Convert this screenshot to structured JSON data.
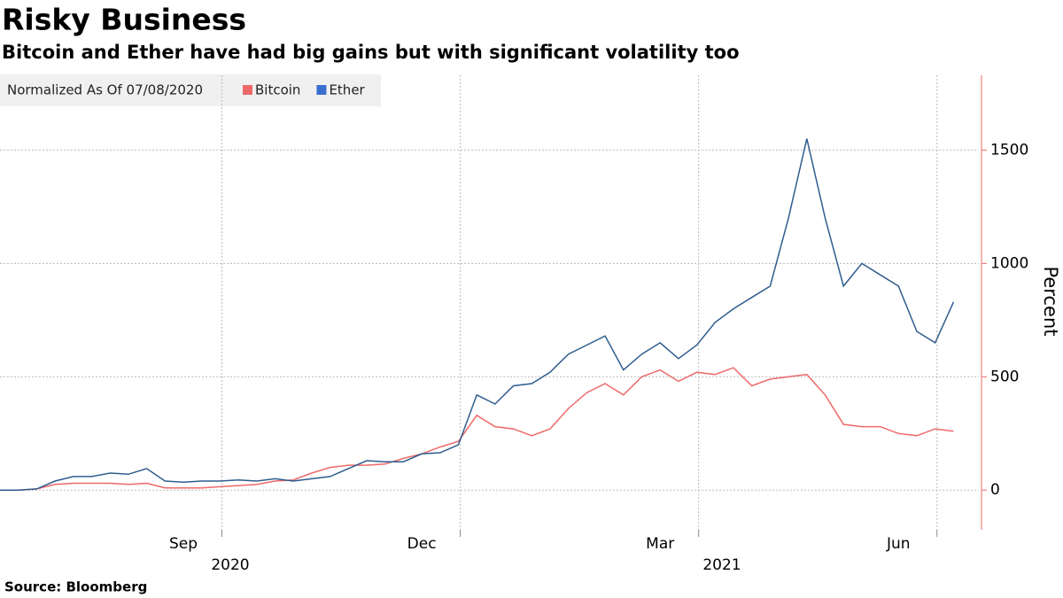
{
  "chart_data": {
    "type": "line",
    "title": "Risky Business",
    "subtitle": "Bitcoin and Ether have had big gains but with significant volatility too",
    "legend_title": "Normalized As Of 07/08/2020",
    "y_label": "Percent",
    "source": "Source: Bloomberg",
    "years": [
      "2020",
      "2021"
    ],
    "categories": [
      null,
      null,
      null,
      null,
      null,
      null,
      null,
      null,
      null,
      null,
      "Sep",
      null,
      null,
      null,
      null,
      null,
      null,
      null,
      null,
      null,
      null,
      null,
      null,
      "Dec",
      null,
      null,
      null,
      null,
      null,
      null,
      null,
      null,
      null,
      null,
      null,
      null,
      "Mar",
      null,
      null,
      null,
      null,
      null,
      null,
      null,
      null,
      null,
      null,
      null,
      null,
      "Jun",
      null,
      null,
      null
    ],
    "series": [
      {
        "name": "Bitcoin",
        "color": "#ee6a6a",
        "values": [
          0,
          0,
          5,
          25,
          30,
          30,
          30,
          25,
          30,
          10,
          10,
          10,
          15,
          20,
          25,
          40,
          45,
          75,
          100,
          110,
          110,
          115,
          140,
          160,
          190,
          215,
          330,
          280,
          270,
          240,
          270,
          360,
          430,
          470,
          420,
          500,
          530,
          480,
          520,
          510,
          540,
          460,
          490,
          500,
          510,
          420,
          290,
          280,
          280,
          250,
          240,
          270,
          260
        ]
      },
      {
        "name": "Ether",
        "color": "#2f5d8e",
        "values": [
          0,
          0,
          5,
          40,
          60,
          60,
          75,
          70,
          95,
          40,
          35,
          40,
          40,
          45,
          40,
          50,
          40,
          50,
          60,
          95,
          130,
          125,
          125,
          160,
          165,
          200,
          420,
          380,
          460,
          470,
          520,
          600,
          640,
          680,
          530,
          600,
          650,
          580,
          640,
          740,
          800,
          850,
          900,
          1200,
          1550,
          1200,
          900,
          1000,
          950,
          900,
          700,
          650,
          830
        ]
      }
    ],
    "ylim": [
      -175,
      1830
    ],
    "yticks": [
      0,
      500,
      1000,
      1500
    ],
    "grid": true
  }
}
